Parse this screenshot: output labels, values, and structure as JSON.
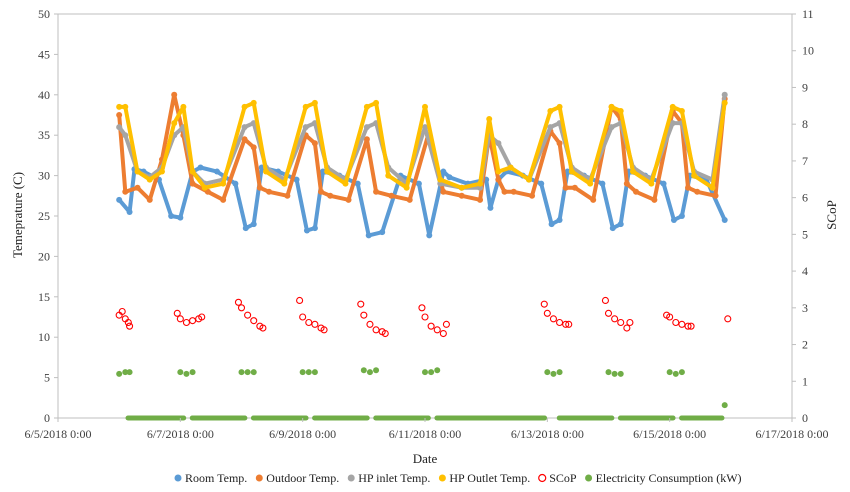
{
  "chart_data": {
    "type": "scatter",
    "xlabel": "Date",
    "ylabel_left": "Temeprature  (C)",
    "ylabel_right": "SCoP",
    "x_ticks": [
      "6/5/2018 0:00",
      "6/7/2018 0:00",
      "6/9/2018 0:00",
      "6/11/2018 0:00",
      "6/13/2018 0:00",
      "6/15/2018 0:00",
      "6/17/2018 0:00"
    ],
    "x_range_days": [
      0,
      12
    ],
    "ylim_left": [
      0,
      50
    ],
    "yticks_left": [
      "0",
      "5",
      "10",
      "15",
      "20",
      "25",
      "30",
      "35",
      "40",
      "45",
      "50"
    ],
    "ylim_right": [
      0,
      11
    ],
    "yticks_right": [
      "0",
      "1",
      "2",
      "3",
      "4",
      "5",
      "6",
      "7",
      "8",
      "9",
      "10",
      "11"
    ],
    "grid": false,
    "legend_position": "bottom",
    "series": [
      {
        "name": "Room Temp.",
        "color": "#5B9BD5",
        "marker": "dot",
        "axis": "left",
        "x": [
          1.0,
          1.17,
          1.25,
          1.4,
          1.65,
          1.85,
          2.0,
          2.2,
          2.33,
          2.6,
          2.9,
          3.07,
          3.2,
          3.33,
          3.6,
          3.9,
          4.07,
          4.2,
          4.33,
          4.6,
          4.9,
          5.08,
          5.3,
          5.6,
          5.9,
          6.07,
          6.3,
          6.4,
          6.7,
          7.0,
          7.07,
          7.2,
          7.33,
          7.6,
          7.9,
          8.07,
          8.2,
          8.33,
          8.6,
          8.9,
          9.07,
          9.2,
          9.33,
          9.6,
          9.9,
          10.07,
          10.2,
          10.33,
          10.6,
          10.9
        ],
        "values": [
          27,
          25.5,
          30.8,
          30.5,
          29.5,
          25,
          24.8,
          30.5,
          31,
          30.5,
          29,
          23.5,
          24,
          31,
          30.5,
          29.5,
          23.2,
          23.5,
          30.5,
          30,
          29,
          22.6,
          23,
          30,
          29,
          22.6,
          30.5,
          29.8,
          29,
          29.5,
          26,
          29.5,
          30.5,
          30,
          29,
          24,
          24.5,
          30.5,
          30,
          29,
          23.5,
          24,
          30.5,
          30,
          29,
          24.5,
          25,
          30,
          29.5,
          24.5
        ]
      },
      {
        "name": "Outdoor Temp.",
        "color": "#ED7D31",
        "marker": "dot",
        "axis": "left",
        "x": [
          1.0,
          1.1,
          1.3,
          1.5,
          1.7,
          1.9,
          2.05,
          2.2,
          2.45,
          2.7,
          3.05,
          3.2,
          3.3,
          3.45,
          3.75,
          4.05,
          4.2,
          4.3,
          4.45,
          4.75,
          5.05,
          5.2,
          5.45,
          5.75,
          6.05,
          6.3,
          6.6,
          6.9,
          7.05,
          7.2,
          7.3,
          7.45,
          7.75,
          8.05,
          8.2,
          8.3,
          8.45,
          8.75,
          9.05,
          9.2,
          9.3,
          9.45,
          9.75,
          10.05,
          10.2,
          10.3,
          10.45,
          10.75,
          10.9
        ],
        "values": [
          37.5,
          28,
          28.5,
          27,
          32,
          40,
          35,
          29,
          28,
          27,
          34.5,
          33.5,
          28.5,
          28,
          27.5,
          35,
          34,
          28,
          27.5,
          27,
          34.5,
          28,
          27.5,
          27,
          35,
          28,
          27.5,
          27,
          35,
          29.5,
          28,
          28,
          27.5,
          35.5,
          34,
          28.5,
          28.5,
          27,
          38.5,
          37,
          29,
          28,
          27,
          38,
          36.5,
          28.5,
          28,
          27.5,
          39.5
        ]
      },
      {
        "name": "HP inlet Temp.",
        "color": "#A5A5A5",
        "marker": "dot",
        "axis": "left",
        "x": [
          1.0,
          1.1,
          1.3,
          1.5,
          1.7,
          1.9,
          2.05,
          2.2,
          2.4,
          2.7,
          3.05,
          3.2,
          3.4,
          3.7,
          4.05,
          4.2,
          4.4,
          4.7,
          5.05,
          5.2,
          5.4,
          5.7,
          6.0,
          6.25,
          6.6,
          6.9,
          7.05,
          7.2,
          7.4,
          7.7,
          8.05,
          8.2,
          8.4,
          8.7,
          9.05,
          9.2,
          9.4,
          9.7,
          10.05,
          10.2,
          10.4,
          10.7,
          10.9
        ],
        "values": [
          36,
          35,
          30.5,
          29.8,
          31,
          35,
          36,
          30.5,
          29,
          29.5,
          36,
          36.5,
          31,
          29.5,
          36,
          36.5,
          31,
          29.5,
          36,
          36.5,
          31,
          29,
          36,
          29,
          28.5,
          28.5,
          35,
          34,
          31,
          29.5,
          36,
          36.5,
          31,
          29.5,
          36,
          36.5,
          31,
          29.5,
          36.5,
          36.5,
          30.5,
          29.5,
          40
        ]
      },
      {
        "name": "HP Outlet Temp.",
        "color": "#FFC000",
        "marker": "dot",
        "axis": "left",
        "x": [
          1.0,
          1.1,
          1.3,
          1.5,
          1.7,
          1.9,
          2.05,
          2.2,
          2.4,
          2.7,
          3.05,
          3.2,
          3.4,
          3.7,
          4.05,
          4.2,
          4.4,
          4.7,
          5.05,
          5.2,
          5.4,
          5.7,
          6.0,
          6.25,
          6.6,
          6.9,
          7.05,
          7.2,
          7.4,
          7.7,
          8.05,
          8.2,
          8.4,
          8.7,
          9.05,
          9.2,
          9.4,
          9.7,
          10.05,
          10.2,
          10.4,
          10.7,
          10.9
        ],
        "values": [
          38.5,
          38.5,
          30.5,
          29.5,
          30.5,
          36.5,
          38.5,
          30.5,
          28.5,
          29,
          38.5,
          39,
          30.5,
          29,
          38.5,
          39,
          30.5,
          29,
          38.5,
          39,
          30,
          28.5,
          38.5,
          29.5,
          28.5,
          29,
          37,
          30.5,
          31,
          29.5,
          38,
          38.5,
          30.5,
          29,
          38.5,
          38,
          30.5,
          29,
          38.5,
          38,
          30,
          28.5,
          39
        ]
      },
      {
        "name": "SCoP",
        "color": "#FF0000",
        "marker": "open-circle",
        "axis": "right",
        "x": [
          1.0,
          1.05,
          1.1,
          1.15,
          1.17,
          1.95,
          2.0,
          2.1,
          2.2,
          2.3,
          2.35,
          2.95,
          3.0,
          3.1,
          3.2,
          3.3,
          3.35,
          3.95,
          4.0,
          4.1,
          4.2,
          4.3,
          4.35,
          4.95,
          5.0,
          5.1,
          5.2,
          5.3,
          5.35,
          5.95,
          6.0,
          6.1,
          6.2,
          6.3,
          6.35,
          7.95,
          8.0,
          8.1,
          8.2,
          8.3,
          8.35,
          8.95,
          9.0,
          9.1,
          9.2,
          9.3,
          9.35,
          9.95,
          10.0,
          10.1,
          10.2,
          10.3,
          10.35,
          10.95
        ],
        "values": [
          2.8,
          2.9,
          2.7,
          2.6,
          2.5,
          2.85,
          2.7,
          2.6,
          2.65,
          2.7,
          2.75,
          3.15,
          3.0,
          2.8,
          2.65,
          2.5,
          2.45,
          3.2,
          2.75,
          2.6,
          2.55,
          2.45,
          2.4,
          3.1,
          2.8,
          2.55,
          2.4,
          2.35,
          2.3,
          3.0,
          2.75,
          2.5,
          2.4,
          2.3,
          2.55,
          3.1,
          2.85,
          2.7,
          2.6,
          2.55,
          2.55,
          3.2,
          2.85,
          2.7,
          2.6,
          2.45,
          2.6,
          2.8,
          2.75,
          2.6,
          2.55,
          2.5,
          2.5,
          2.7
        ]
      },
      {
        "name": "Electricity Consumption (kW)",
        "color": "#70AD47",
        "marker": "dot",
        "axis": "right",
        "x": [
          1.0,
          1.1,
          1.17,
          1.3,
          1.5,
          1.7,
          1.9,
          2.0,
          2.1,
          2.2,
          2.35,
          2.5,
          2.7,
          2.9,
          3.0,
          3.1,
          3.2,
          3.35,
          3.5,
          3.7,
          3.9,
          4.0,
          4.1,
          4.2,
          4.35,
          4.5,
          4.7,
          4.9,
          5.0,
          5.1,
          5.2,
          5.35,
          5.5,
          5.7,
          5.9,
          6.0,
          6.1,
          6.2,
          6.35,
          6.6,
          6.9,
          7.2,
          7.5,
          7.8,
          8.0,
          8.1,
          8.2,
          8.35,
          8.5,
          8.7,
          8.9,
          9.0,
          9.1,
          9.2,
          9.35,
          9.5,
          9.7,
          9.9,
          10.0,
          10.1,
          10.2,
          10.35,
          10.5,
          10.7,
          10.9
        ],
        "values": [
          1.2,
          1.25,
          1.25,
          0,
          0,
          0,
          0,
          1.25,
          1.2,
          1.25,
          0,
          0,
          0,
          0,
          1.25,
          1.25,
          1.25,
          0,
          0,
          0,
          0,
          1.25,
          1.25,
          1.25,
          0,
          0,
          0,
          0,
          1.3,
          1.25,
          1.3,
          0,
          0,
          0,
          0,
          1.25,
          1.25,
          1.3,
          0,
          0,
          0,
          0,
          0,
          0,
          1.25,
          1.2,
          1.25,
          0,
          0,
          0,
          0,
          1.25,
          1.2,
          1.2,
          0,
          0,
          0,
          0,
          1.25,
          1.2,
          1.25,
          0,
          0,
          0,
          0.35
        ]
      }
    ]
  }
}
